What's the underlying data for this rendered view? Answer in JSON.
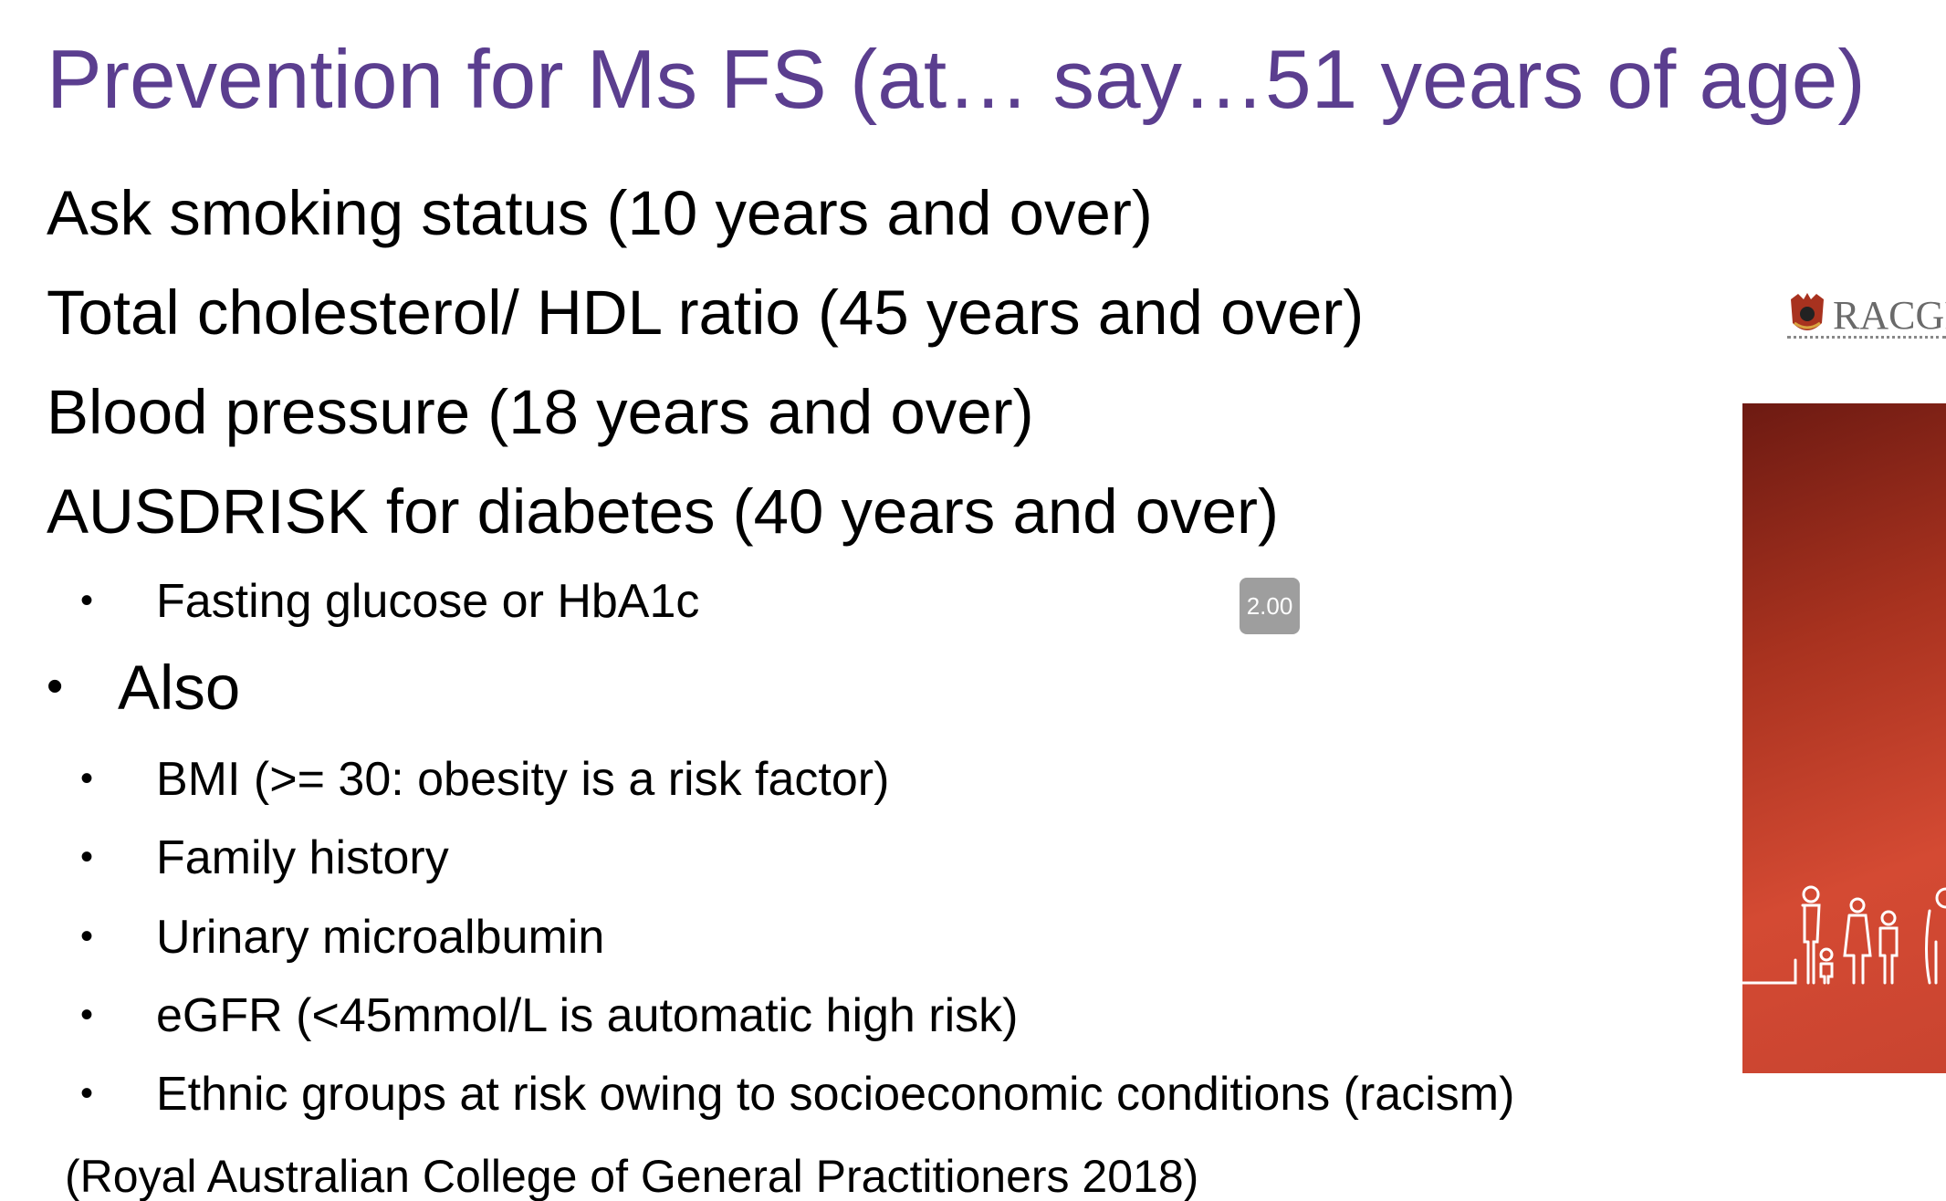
{
  "slide": {
    "title": "Prevention for Ms FS (at… say…51 years of age)",
    "lines": [
      "Ask smoking status (10 years and over)",
      "Total cholesterol/ HDL ratio (45 years and over)",
      "Blood pressure (18 years and over)",
      "AUSDRISK  for diabetes (40 years and over)"
    ],
    "diabetes_sub": "Fasting glucose or HbA1c",
    "also_label": "Also",
    "also_items": [
      "BMI (>= 30: obesity is a risk factor)",
      "Family history",
      "Urinary microalbumin",
      "eGFR (<45mmol/L is automatic high risk)",
      "Ethnic groups at risk owing to socioeconomic conditions (racism)"
    ],
    "citation": "(Royal Australian College of General Practitioners 2018)",
    "bullet_glyph": "•"
  },
  "badge": {
    "value": "2.00"
  },
  "logo": {
    "wordmark": "RACGP"
  },
  "colors": {
    "title": "#5b3e8f",
    "body_text": "#000000",
    "badge_bg": "#9e9e9e",
    "cover_red": "#c94430"
  }
}
